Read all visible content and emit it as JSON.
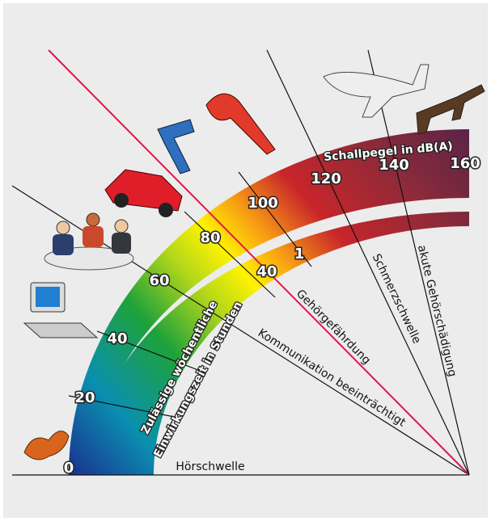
{
  "scale": {
    "title": "Schallpegel in dB(A)",
    "labels": [
      "0",
      "20",
      "40",
      "60",
      "80",
      "100",
      "120",
      "140",
      "160"
    ]
  },
  "exposure": {
    "title_lines": [
      "Zulässige wöchentliche",
      "Einwirkungszeit in Stunden"
    ],
    "labels": [
      "40",
      "1"
    ]
  },
  "thresholds": [
    "Hörschwelle",
    "Kommunikation beeinträchtigt",
    "Gehörgefährdung",
    "Schmerzschwelle",
    "akute Gehörschädigung"
  ]
}
